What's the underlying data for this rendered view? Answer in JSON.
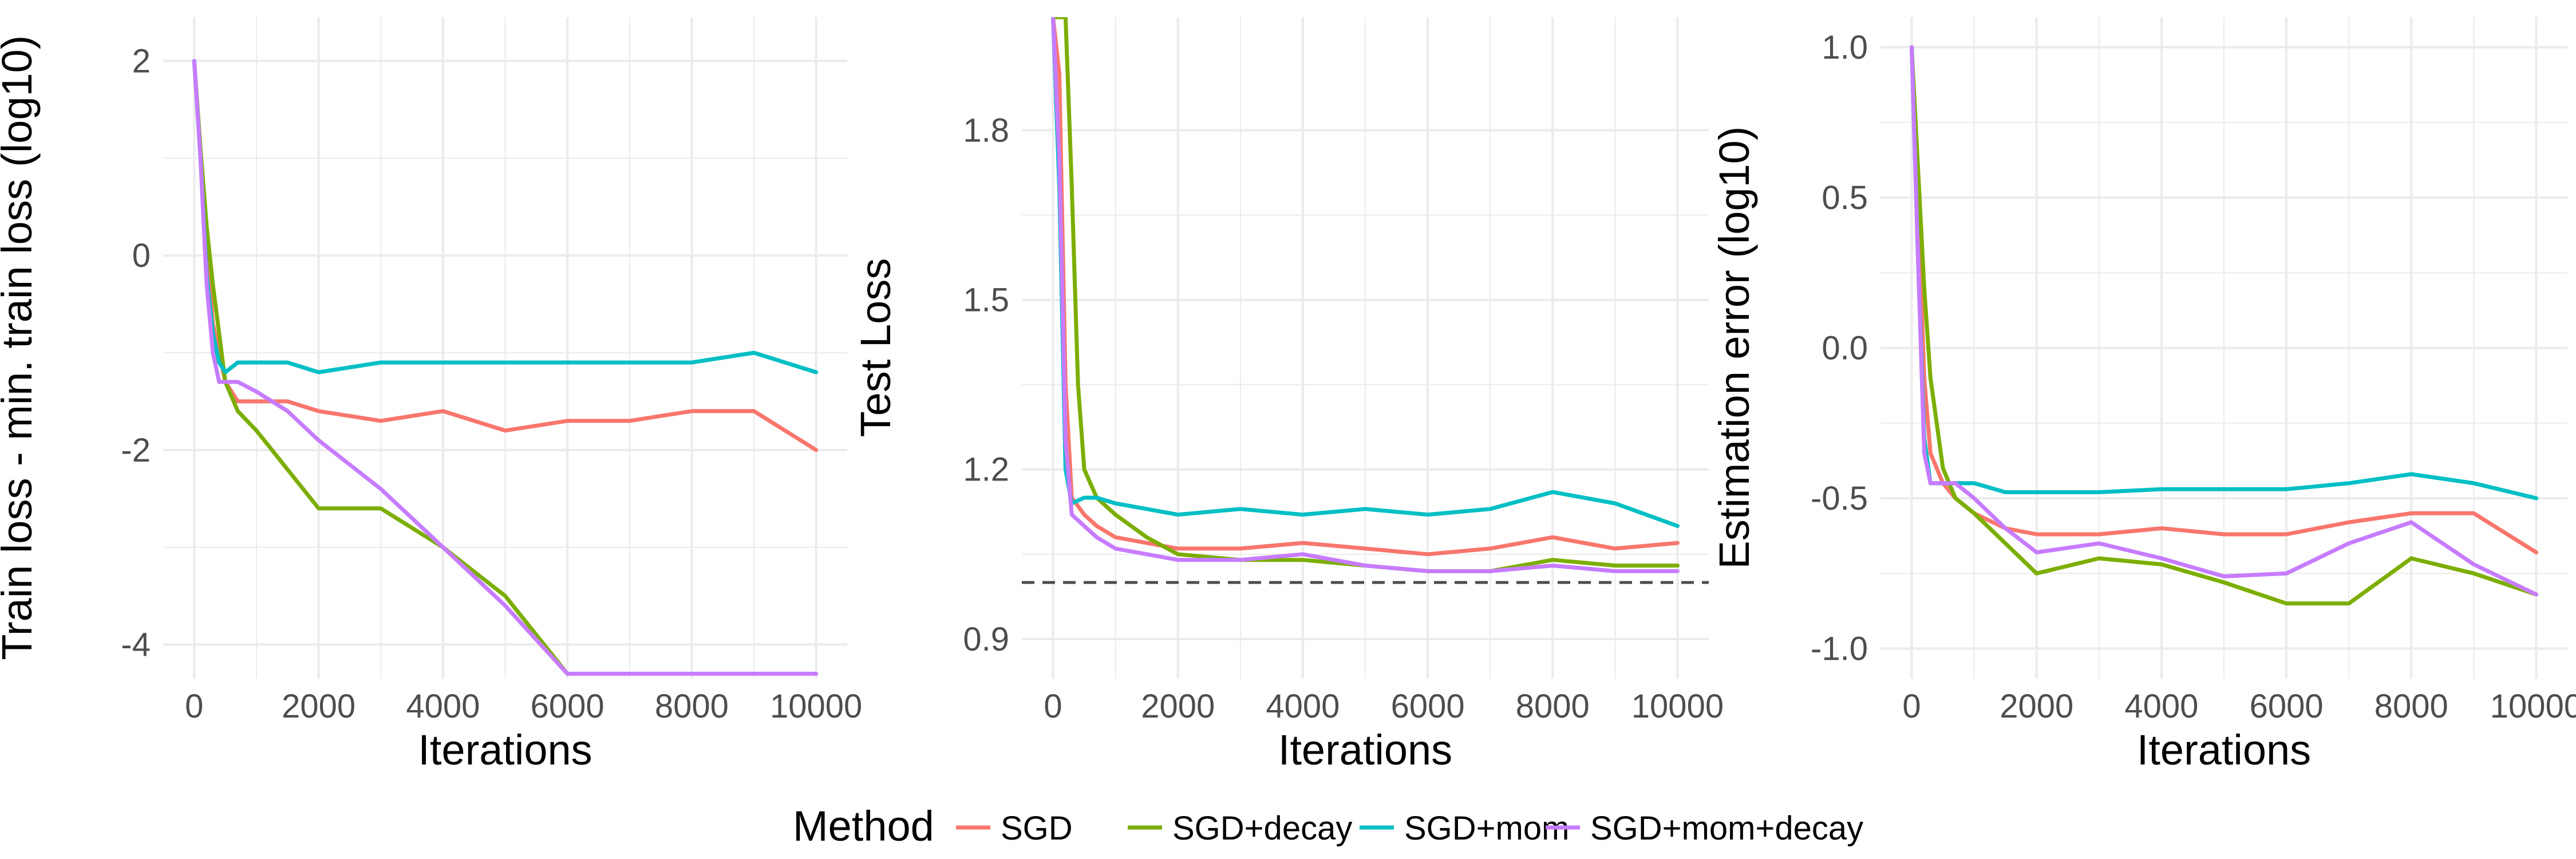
{
  "colors": {
    "SGD": "#F8766D",
    "SGD+decay": "#7CAE00",
    "SGD+mom": "#00BFC4",
    "SGD+mom+decay": "#C77CFF",
    "reference_line": "#4d4d4d",
    "grid": "#ebebeb"
  },
  "legend": {
    "title": "Method",
    "entries": [
      "SGD",
      "SGD+decay",
      "SGD+mom",
      "SGD+mom+decay"
    ],
    "position": "bottom"
  },
  "chart_data": [
    {
      "type": "line",
      "xlabel": "Iterations",
      "ylabel": "Train loss - min. train loss (log10)",
      "xlim": [
        -500,
        10500
      ],
      "ylim": [
        -4.35,
        2.45
      ],
      "xticks": [
        0,
        2000,
        4000,
        6000,
        8000,
        10000
      ],
      "yticks": [
        -4,
        -2,
        0,
        2
      ],
      "grid": true,
      "series": [
        {
          "name": "SGD",
          "x": [
            0,
            100,
            200,
            300,
            400,
            500,
            700,
            1000,
            1500,
            2000,
            3000,
            4000,
            5000,
            6000,
            7000,
            8000,
            9000,
            10000
          ],
          "y": [
            2.0,
            1.0,
            0.1,
            -0.7,
            -1.0,
            -1.3,
            -1.5,
            -1.5,
            -1.5,
            -1.6,
            -1.7,
            -1.6,
            -1.8,
            -1.7,
            -1.7,
            -1.6,
            -1.6,
            -2.0
          ]
        },
        {
          "name": "SGD+decay",
          "x": [
            0,
            100,
            200,
            300,
            400,
            500,
            700,
            1000,
            1500,
            2000,
            3000,
            4000,
            5000,
            6000,
            7000,
            8000,
            9000,
            10000
          ],
          "y": [
            2.0,
            1.1,
            0.3,
            -0.3,
            -0.8,
            -1.3,
            -1.6,
            -1.8,
            -2.2,
            -2.6,
            -2.6,
            -3.0,
            -3.5,
            -4.3,
            -4.3,
            -4.3,
            -4.3,
            -4.3
          ]
        },
        {
          "name": "SGD+mom",
          "x": [
            0,
            100,
            200,
            300,
            400,
            500,
            700,
            1000,
            1500,
            2000,
            3000,
            4000,
            5000,
            6000,
            7000,
            8000,
            9000,
            10000
          ],
          "y": [
            2.0,
            1.0,
            -0.2,
            -0.8,
            -1.1,
            -1.2,
            -1.1,
            -1.1,
            -1.1,
            -1.2,
            -1.1,
            -1.1,
            -1.1,
            -1.1,
            -1.1,
            -1.1,
            -1.0,
            -1.2
          ]
        },
        {
          "name": "SGD+mom+decay",
          "x": [
            0,
            100,
            200,
            300,
            400,
            500,
            700,
            1000,
            1500,
            2000,
            3000,
            4000,
            5000,
            6000,
            7000,
            8000,
            9000,
            10000
          ],
          "y": [
            2.0,
            1.0,
            -0.3,
            -1.0,
            -1.3,
            -1.3,
            -1.3,
            -1.4,
            -1.6,
            -1.9,
            -2.4,
            -3.0,
            -3.6,
            -4.3,
            -4.3,
            -4.3,
            -4.3,
            -4.3
          ]
        }
      ]
    },
    {
      "type": "line",
      "xlabel": "Iterations",
      "ylabel": "Test Loss",
      "xlim": [
        -500,
        10500
      ],
      "ylim": [
        0.83,
        2.0
      ],
      "xticks": [
        0,
        2000,
        4000,
        6000,
        8000,
        10000
      ],
      "yticks": [
        0.9,
        1.2,
        1.5,
        1.8
      ],
      "grid": true,
      "hline": 1.0,
      "series": [
        {
          "name": "SGD",
          "x": [
            0,
            100,
            200,
            300,
            500,
            700,
            1000,
            1500,
            2000,
            3000,
            4000,
            5000,
            6000,
            7000,
            8000,
            9000,
            10000
          ],
          "y": [
            2.0,
            1.9,
            1.35,
            1.15,
            1.12,
            1.1,
            1.08,
            1.07,
            1.06,
            1.06,
            1.07,
            1.06,
            1.05,
            1.06,
            1.08,
            1.06,
            1.07
          ]
        },
        {
          "name": "SGD+decay",
          "x": [
            0,
            100,
            200,
            300,
            400,
            500,
            700,
            1000,
            1500,
            2000,
            3000,
            4000,
            5000,
            6000,
            7000,
            8000,
            9000,
            10000
          ],
          "y": [
            2.0,
            2.0,
            2.0,
            1.7,
            1.35,
            1.2,
            1.15,
            1.12,
            1.08,
            1.05,
            1.04,
            1.04,
            1.03,
            1.02,
            1.02,
            1.04,
            1.03,
            1.03
          ]
        },
        {
          "name": "SGD+mom",
          "x": [
            0,
            100,
            200,
            300,
            500,
            700,
            1000,
            1500,
            2000,
            3000,
            4000,
            5000,
            6000,
            7000,
            8000,
            9000,
            10000
          ],
          "y": [
            2.0,
            1.7,
            1.2,
            1.14,
            1.15,
            1.15,
            1.14,
            1.13,
            1.12,
            1.13,
            1.12,
            1.13,
            1.12,
            1.13,
            1.16,
            1.14,
            1.1
          ]
        },
        {
          "name": "SGD+mom+decay",
          "x": [
            0,
            100,
            200,
            300,
            500,
            700,
            1000,
            1500,
            2000,
            3000,
            4000,
            5000,
            6000,
            7000,
            8000,
            9000,
            10000
          ],
          "y": [
            2.0,
            1.75,
            1.25,
            1.12,
            1.1,
            1.08,
            1.06,
            1.05,
            1.04,
            1.04,
            1.05,
            1.03,
            1.02,
            1.02,
            1.03,
            1.02,
            1.02
          ]
        }
      ]
    },
    {
      "type": "line",
      "xlabel": "Iterations",
      "ylabel": "Estimation error (log10)",
      "xlim": [
        -500,
        10500
      ],
      "ylim": [
        -1.1,
        1.1
      ],
      "xticks": [
        0,
        2000,
        4000,
        6000,
        8000,
        10000
      ],
      "yticks": [
        -1.0,
        -0.5,
        0.0,
        0.5,
        1.0
      ],
      "grid": true,
      "series": [
        {
          "name": "SGD",
          "x": [
            0,
            100,
            200,
            300,
            500,
            700,
            1000,
            1500,
            2000,
            3000,
            4000,
            5000,
            6000,
            7000,
            8000,
            9000,
            10000
          ],
          "y": [
            1.0,
            0.5,
            -0.1,
            -0.35,
            -0.45,
            -0.5,
            -0.55,
            -0.6,
            -0.62,
            -0.62,
            -0.6,
            -0.62,
            -0.62,
            -0.58,
            -0.55,
            -0.55,
            -0.68
          ]
        },
        {
          "name": "SGD+decay",
          "x": [
            0,
            100,
            200,
            300,
            500,
            700,
            1000,
            1500,
            2000,
            3000,
            4000,
            5000,
            6000,
            7000,
            8000,
            9000,
            10000
          ],
          "y": [
            1.0,
            0.6,
            0.2,
            -0.1,
            -0.4,
            -0.5,
            -0.55,
            -0.65,
            -0.75,
            -0.7,
            -0.72,
            -0.78,
            -0.85,
            -0.85,
            -0.7,
            -0.75,
            -0.82
          ]
        },
        {
          "name": "SGD+mom",
          "x": [
            0,
            100,
            200,
            300,
            500,
            700,
            1000,
            1500,
            2000,
            3000,
            4000,
            5000,
            6000,
            7000,
            8000,
            9000,
            10000
          ],
          "y": [
            1.0,
            0.3,
            -0.3,
            -0.45,
            -0.45,
            -0.45,
            -0.45,
            -0.48,
            -0.48,
            -0.48,
            -0.47,
            -0.47,
            -0.47,
            -0.45,
            -0.42,
            -0.45,
            -0.5
          ]
        },
        {
          "name": "SGD+mom+decay",
          "x": [
            0,
            100,
            200,
            300,
            500,
            700,
            1000,
            1500,
            2000,
            3000,
            4000,
            5000,
            6000,
            7000,
            8000,
            9000,
            10000
          ],
          "y": [
            1.0,
            0.3,
            -0.35,
            -0.45,
            -0.45,
            -0.45,
            -0.5,
            -0.6,
            -0.68,
            -0.65,
            -0.7,
            -0.76,
            -0.75,
            -0.65,
            -0.58,
            -0.72,
            -0.82
          ]
        }
      ]
    }
  ]
}
